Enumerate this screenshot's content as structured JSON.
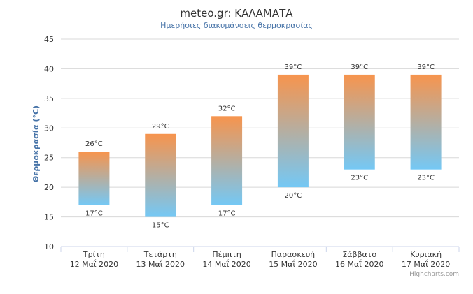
{
  "chart_data": {
    "type": "bar",
    "subtype": "columnrange",
    "title": "meteo.gr: ΚΑΛΑΜΑΤΑ",
    "subtitle": "Ημερήσιες διακυμάνσεις θερμοκρασίας",
    "ylabel": "Θερμοκρασία (°C)",
    "ylim": [
      10,
      45
    ],
    "yticks": [
      10,
      15,
      20,
      25,
      30,
      35,
      40,
      45
    ],
    "grid": true,
    "categories": [
      {
        "day": "Τρίτη",
        "date": "12 Μαΐ 2020"
      },
      {
        "day": "Τετάρτη",
        "date": "13 Μαΐ 2020"
      },
      {
        "day": "Πέμπτη",
        "date": "14 Μαΐ 2020"
      },
      {
        "day": "Παρασκευή",
        "date": "15 Μαΐ 2020"
      },
      {
        "day": "Σάββατο",
        "date": "16 Μαΐ 2020"
      },
      {
        "day": "Κυριακή",
        "date": "17 Μαΐ 2020"
      }
    ],
    "low": [
      17,
      15,
      17,
      20,
      23,
      23
    ],
    "high": [
      26,
      29,
      32,
      39,
      39,
      39
    ],
    "low_labels": [
      "17°C",
      "15°C",
      "17°C",
      "20°C",
      "23°C",
      "23°C"
    ],
    "high_labels": [
      "26°C",
      "29°C",
      "32°C",
      "39°C",
      "39°C",
      "39°C"
    ],
    "colors": {
      "warm": "#f7944d",
      "cool": "#74c8f5",
      "grid": "#d8d8d8",
      "axis": "#ccd6eb"
    }
  },
  "credits": "Highcharts.com"
}
